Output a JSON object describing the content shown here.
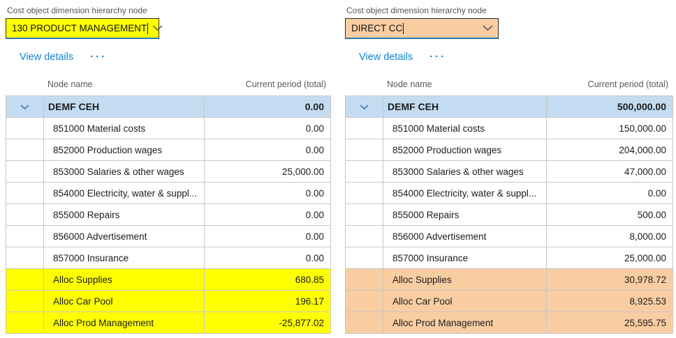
{
  "colors": {
    "left_highlight": "#ffff00",
    "right_highlight": "#f9cda2",
    "selected_row_bg": "#c3dcf1",
    "link_blue": "#1183d3",
    "focus_underline": "#2e78ae",
    "grid_border": "#c6c6c6"
  },
  "panels": [
    {
      "field_label": "Cost object dimension hierarchy node",
      "dropdown_value": "130 PRODUCT MANAGEMENT",
      "dropdown_bg": "#ffff00",
      "highlight_color": "#ffff00",
      "view_details_label": "View details",
      "more_label": "···",
      "columns": [
        "Node name",
        "Current period (total)"
      ],
      "summary_row": {
        "name": "DEMF CEH",
        "value": "0.00"
      },
      "rows": [
        {
          "name": "851000 Material costs",
          "value": "0.00",
          "highlight": false
        },
        {
          "name": "852000 Production wages",
          "value": "0.00",
          "highlight": false
        },
        {
          "name": "853000 Salaries & other wages",
          "value": "25,000.00",
          "highlight": false
        },
        {
          "name": "854000 Electricity, water & suppl...",
          "value": "0.00",
          "highlight": false
        },
        {
          "name": "855000 Repairs",
          "value": "0.00",
          "highlight": false
        },
        {
          "name": "856000 Advertisement",
          "value": "0.00",
          "highlight": false
        },
        {
          "name": "857000 Insurance",
          "value": "0.00",
          "highlight": false
        },
        {
          "name": "Alloc Supplies",
          "value": "680.85",
          "highlight": true
        },
        {
          "name": "Alloc Car Pool",
          "value": "196.17",
          "highlight": true
        },
        {
          "name": "Alloc Prod Management",
          "value": "-25,877.02",
          "highlight": true
        }
      ]
    },
    {
      "field_label": "Cost object dimension hierarchy node",
      "dropdown_value": "DIRECT CC",
      "dropdown_bg": "#f9cda2",
      "highlight_color": "#f9cda2",
      "view_details_label": "View details",
      "more_label": "···",
      "columns": [
        "Node name",
        "Current period (total)"
      ],
      "summary_row": {
        "name": "DEMF CEH",
        "value": "500,000.00"
      },
      "rows": [
        {
          "name": "851000 Material costs",
          "value": "150,000.00",
          "highlight": false
        },
        {
          "name": "852000 Production wages",
          "value": "204,000.00",
          "highlight": false
        },
        {
          "name": "853000 Salaries & other wages",
          "value": "47,000.00",
          "highlight": false
        },
        {
          "name": "854000 Electricity, water & suppl...",
          "value": "0.00",
          "highlight": false
        },
        {
          "name": "855000 Repairs",
          "value": "500.00",
          "highlight": false
        },
        {
          "name": "856000 Advertisement",
          "value": "8,000.00",
          "highlight": false
        },
        {
          "name": "857000 Insurance",
          "value": "25,000.00",
          "highlight": false
        },
        {
          "name": "Alloc Supplies",
          "value": "30,978.72",
          "highlight": true
        },
        {
          "name": "Alloc Car Pool",
          "value": "8,925.53",
          "highlight": true
        },
        {
          "name": "Alloc Prod Management",
          "value": "25,595.75",
          "highlight": true
        }
      ]
    }
  ]
}
